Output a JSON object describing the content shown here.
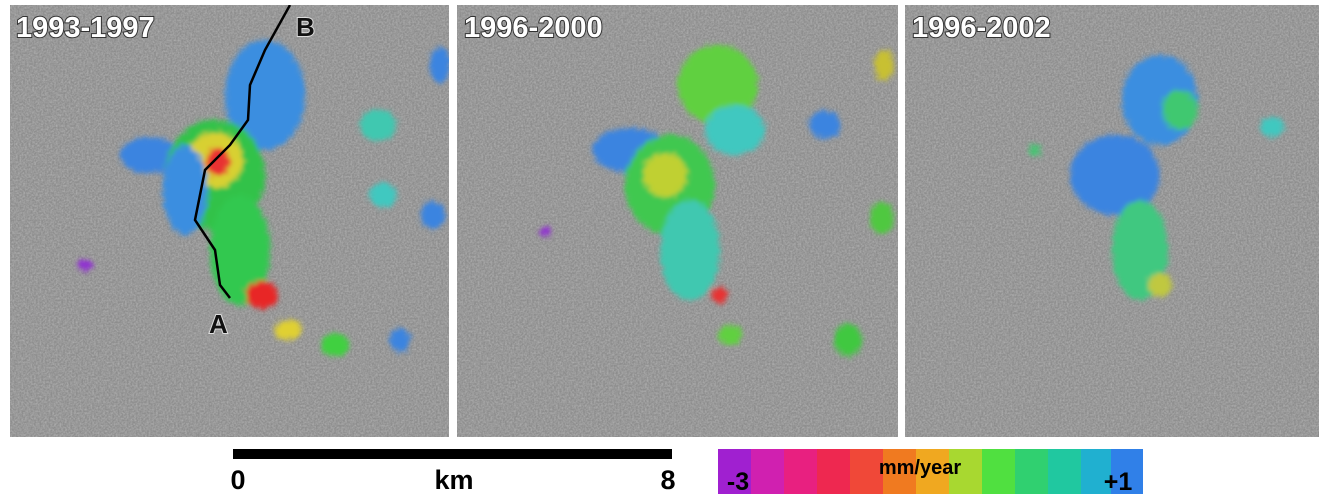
{
  "panels": [
    {
      "title": "1993-1997"
    },
    {
      "title": "1996-2000"
    },
    {
      "title": "1996-2002"
    }
  ],
  "profile": {
    "start_label": "A",
    "end_label": "B"
  },
  "scale_bar": {
    "start": "0",
    "unit": "km",
    "end": "8"
  },
  "colorbar": {
    "min_label": "-3",
    "unit": "mm/year",
    "max_label": "+1"
  }
}
